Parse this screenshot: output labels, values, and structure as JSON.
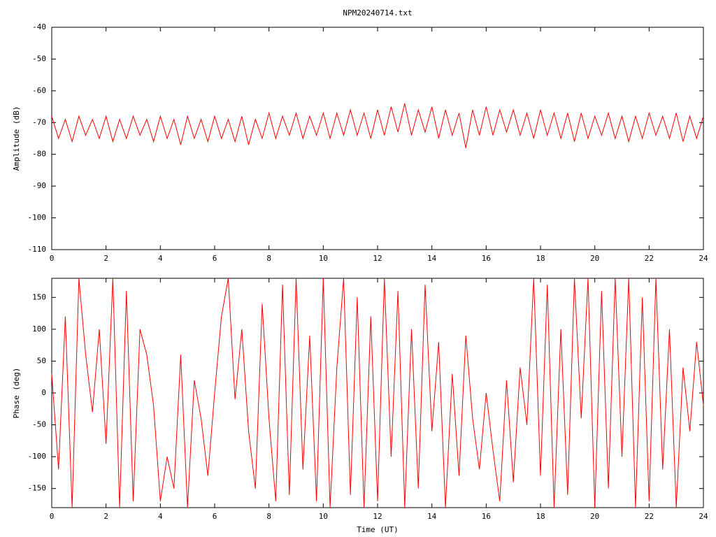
{
  "chart_data": [
    {
      "type": "line",
      "title": "NPM20240714.txt",
      "ylabel": "Amplitude (dB)",
      "x": [
        0,
        0.25,
        0.5,
        0.75,
        1,
        1.25,
        1.5,
        1.75,
        2,
        2.25,
        2.5,
        2.75,
        3,
        3.25,
        3.5,
        3.75,
        4,
        4.25,
        4.5,
        4.75,
        5,
        5.25,
        5.5,
        5.75,
        6,
        6.25,
        6.5,
        6.75,
        7,
        7.25,
        7.5,
        7.75,
        8,
        8.25,
        8.5,
        8.75,
        9,
        9.25,
        9.5,
        9.75,
        10,
        10.25,
        10.5,
        10.75,
        11,
        11.25,
        11.5,
        11.75,
        12,
        12.25,
        12.5,
        12.75,
        13,
        13.25,
        13.5,
        13.75,
        14,
        14.25,
        14.5,
        14.75,
        15,
        15.25,
        15.5,
        15.75,
        16,
        16.25,
        16.5,
        16.75,
        17,
        17.25,
        17.5,
        17.75,
        18,
        18.25,
        18.5,
        18.75,
        19,
        19.25,
        19.5,
        19.75,
        20,
        20.25,
        20.5,
        20.75,
        21,
        21.25,
        21.5,
        21.75,
        22,
        22.25,
        22.5,
        22.75,
        23,
        23.25,
        23.5,
        23.75,
        24
      ],
      "series": [
        {
          "color": "#ff0000",
          "values": [
            -68,
            -75,
            -69,
            -76,
            -68,
            -74,
            -69,
            -75,
            -68,
            -76,
            -69,
            -75,
            -68,
            -74,
            -69,
            -76,
            -68,
            -75,
            -69,
            -77,
            -68,
            -75,
            -69,
            -76,
            -68,
            -75,
            -69,
            -76,
            -68,
            -77,
            -69,
            -75,
            -67,
            -75,
            -68,
            -74,
            -67,
            -75,
            -68,
            -74,
            -67,
            -75,
            -67,
            -74,
            -66,
            -74,
            -67,
            -75,
            -66,
            -74,
            -65,
            -73,
            -64,
            -74,
            -66,
            -73,
            -65,
            -75,
            -66,
            -74,
            -67,
            -78,
            -66,
            -74,
            -65,
            -74,
            -66,
            -73,
            -66,
            -74,
            -67,
            -75,
            -66,
            -74,
            -67,
            -75,
            -67,
            -76,
            -67,
            -75,
            -68,
            -74,
            -67,
            -75,
            -68,
            -76,
            -68,
            -75,
            -67,
            -74,
            -68,
            -75,
            -67,
            -76,
            -68,
            -75,
            -68
          ]
        }
      ],
      "xlim": [
        0,
        24
      ],
      "xticks": [
        0,
        2,
        4,
        6,
        8,
        10,
        12,
        14,
        16,
        18,
        20,
        22,
        24
      ],
      "ylim": [
        -110,
        -40
      ],
      "yticks": [
        -40,
        -50,
        -60,
        -70,
        -80,
        -90,
        -100,
        -110
      ],
      "grid": false
    },
    {
      "type": "line",
      "ylabel": "Phase (deg)",
      "xlabel": "Time (UT)",
      "x": [
        0,
        0.25,
        0.5,
        0.75,
        1,
        1.25,
        1.5,
        1.75,
        2,
        2.25,
        2.5,
        2.75,
        3,
        3.25,
        3.5,
        3.75,
        4,
        4.25,
        4.5,
        4.75,
        5,
        5.25,
        5.5,
        5.75,
        6,
        6.25,
        6.5,
        6.75,
        7,
        7.25,
        7.5,
        7.75,
        8,
        8.25,
        8.5,
        8.75,
        9,
        9.25,
        9.5,
        9.75,
        10,
        10.25,
        10.5,
        10.75,
        11,
        11.25,
        11.5,
        11.75,
        12,
        12.25,
        12.5,
        12.75,
        13,
        13.25,
        13.5,
        13.75,
        14,
        14.25,
        14.5,
        14.75,
        15,
        15.25,
        15.5,
        15.75,
        16,
        16.25,
        16.5,
        16.75,
        17,
        17.25,
        17.5,
        17.75,
        18,
        18.25,
        18.5,
        18.75,
        19,
        19.25,
        19.5,
        19.75,
        20,
        20.25,
        20.5,
        20.75,
        21,
        21.25,
        21.5,
        21.75,
        22,
        22.25,
        22.5,
        22.75,
        23,
        23.25,
        23.5,
        23.75,
        24
      ],
      "series": [
        {
          "color": "#ff0000",
          "values": [
            30,
            -120,
            120,
            -180,
            180,
            60,
            -30,
            100,
            -80,
            180,
            -180,
            160,
            -170,
            100,
            60,
            -20,
            -170,
            -100,
            -150,
            60,
            -180,
            20,
            -40,
            -130,
            0,
            120,
            180,
            -10,
            100,
            -60,
            -150,
            140,
            -40,
            -170,
            170,
            -160,
            180,
            -120,
            90,
            -170,
            180,
            -180,
            40,
            180,
            -160,
            150,
            -180,
            120,
            -170,
            180,
            -100,
            160,
            -180,
            100,
            -150,
            170,
            -60,
            80,
            -180,
            30,
            -130,
            90,
            -40,
            -120,
            0,
            -90,
            -170,
            20,
            -140,
            40,
            -50,
            180,
            -130,
            170,
            -180,
            100,
            -160,
            180,
            -40,
            180,
            -180,
            160,
            -150,
            180,
            -100,
            180,
            -180,
            150,
            -170,
            180,
            -120,
            100,
            -180,
            40,
            -60,
            80,
            -20
          ]
        }
      ],
      "xlim": [
        0,
        24
      ],
      "xticks": [
        0,
        2,
        4,
        6,
        8,
        10,
        12,
        14,
        16,
        18,
        20,
        22,
        24
      ],
      "ylim": [
        -180,
        180
      ],
      "yticks": [
        -150,
        -100,
        -50,
        0,
        50,
        100,
        150
      ],
      "grid": false
    }
  ]
}
